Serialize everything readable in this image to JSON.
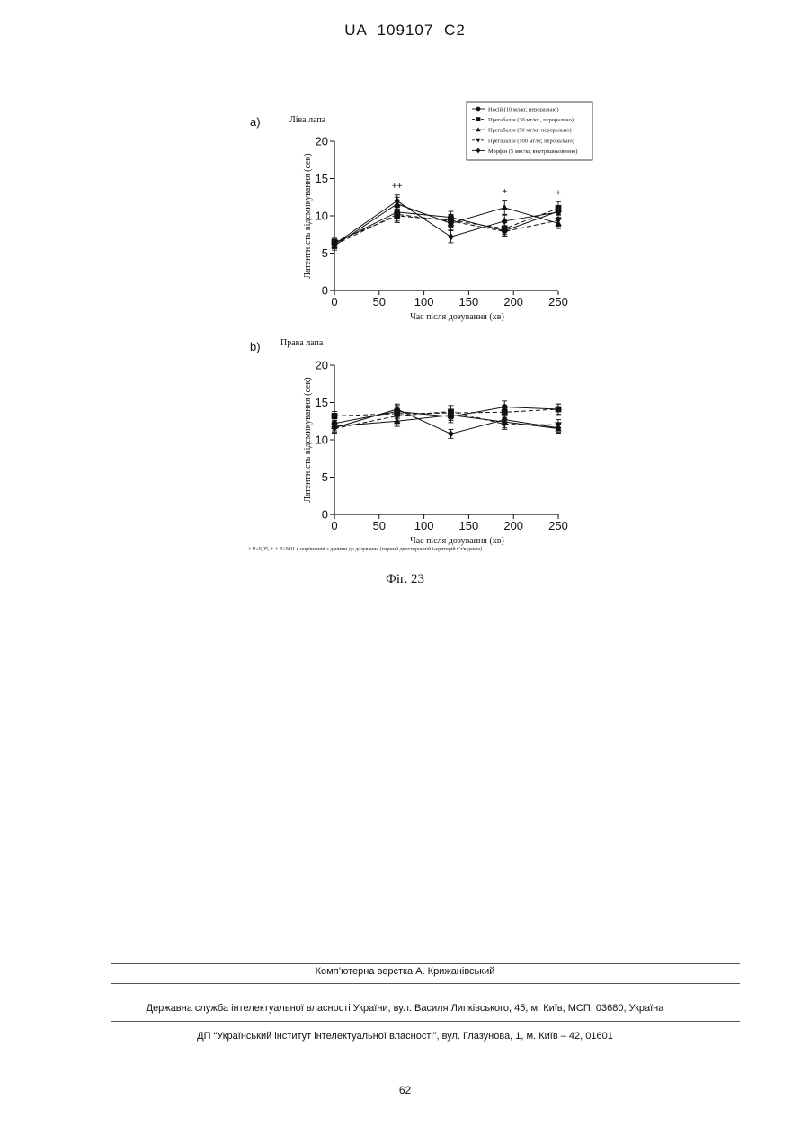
{
  "header": {
    "text": "UA   109107   C2"
  },
  "figure": {
    "caption": "Фіг. 23",
    "footnote": "+ P<0,05, + + P<0,01 в порівнянні з даними до дозування (парний двосторонній t-критерій Ст'юдента)"
  },
  "chart_data": [
    {
      "type": "line",
      "panel_letter": "a)",
      "title": "Ліва лапа",
      "xlabel": "Час після дозування (хв)",
      "ylabel": "Латентність відсмикування (сек)",
      "xlim": [
        0,
        250
      ],
      "ylim": [
        0,
        20
      ],
      "xticks": [
        "0",
        "50",
        "100",
        "150",
        "200",
        "250"
      ],
      "yticks": [
        "0",
        "5",
        "10",
        "15",
        "20"
      ],
      "x": [
        0,
        70,
        130,
        190,
        250
      ],
      "legend_position": "top-right",
      "significance": [
        {
          "x": 70,
          "y": 13.6,
          "label": "++"
        },
        {
          "x": 190,
          "y": 12.9,
          "label": "+"
        },
        {
          "x": 250,
          "y": 12.7,
          "label": "+"
        }
      ],
      "series": [
        {
          "name": "Носій (10 мл/кг, перорально)",
          "marker": "circle",
          "dash": "solid",
          "values": [
            6.3,
            10.5,
            9.8,
            8.0,
            10.6
          ],
          "err": [
            0.5,
            0.9,
            0.8,
            0.7,
            0.8
          ]
        },
        {
          "name": "Прегабалін (30 мг/кг , перорально)",
          "marker": "square",
          "dash": "dash",
          "values": [
            6.5,
            10.0,
            9.4,
            8.3,
            11.0
          ],
          "err": [
            0.5,
            0.9,
            0.8,
            0.8,
            0.9
          ]
        },
        {
          "name": "Прегабалін (50 мг/кг, перорально)",
          "marker": "triangle-up",
          "dash": "solid",
          "values": [
            6.0,
            11.6,
            9.0,
            11.1,
            9.0
          ],
          "err": [
            0.6,
            0.9,
            0.9,
            1.0,
            0.7
          ]
        },
        {
          "name": "Прегабалін (100 мг/кг, перорально)",
          "marker": "triangle-down",
          "dash": "dash",
          "values": [
            6.1,
            10.2,
            9.3,
            7.9,
            9.4
          ],
          "err": [
            0.5,
            0.9,
            0.8,
            0.7,
            0.8
          ]
        },
        {
          "name": "Морфін (5 мкг/кг, внутрішньовенно)",
          "marker": "diamond",
          "dash": "solid",
          "values": [
            6.2,
            12.0,
            7.2,
            9.3,
            10.5
          ],
          "err": [
            0.5,
            0.8,
            0.8,
            0.9,
            0.8
          ]
        }
      ]
    },
    {
      "type": "line",
      "panel_letter": "b)",
      "title": "Права лапа",
      "xlabel": "Час після дозування (хв)",
      "ylabel": "Латентність відсмикування (сек)",
      "xlim": [
        0,
        250
      ],
      "ylim": [
        0,
        20
      ],
      "xticks": [
        "0",
        "50",
        "100",
        "150",
        "200",
        "250"
      ],
      "yticks": [
        "0",
        "5",
        "10",
        "15",
        "20"
      ],
      "x": [
        0,
        70,
        130,
        190,
        250
      ],
      "significance": [],
      "series": [
        {
          "name": "Носій (10 мл/кг, перорально)",
          "marker": "circle",
          "dash": "solid",
          "values": [
            12.2,
            13.8,
            13.1,
            14.4,
            14.1
          ],
          "err": [
            0.6,
            0.8,
            0.8,
            0.8,
            0.7
          ]
        },
        {
          "name": "Прегабалін (30 мг/кг , перорально)",
          "marker": "square",
          "dash": "dash",
          "values": [
            13.2,
            13.5,
            13.6,
            13.7,
            14.1
          ],
          "err": [
            0.6,
            0.7,
            0.8,
            0.7,
            0.7
          ]
        },
        {
          "name": "Прегабалін (50 мг/кг, перорально)",
          "marker": "triangle-up",
          "dash": "solid",
          "values": [
            11.8,
            12.5,
            13.3,
            12.4,
            11.5
          ],
          "err": [
            0.6,
            0.7,
            0.7,
            0.8,
            0.6
          ]
        },
        {
          "name": "Прегабалін (100 мг/кг, перорально)",
          "marker": "triangle-down",
          "dash": "dash",
          "values": [
            11.5,
            13.2,
            13.8,
            12.1,
            12.0
          ],
          "err": [
            0.6,
            0.8,
            0.8,
            0.7,
            0.7
          ]
        },
        {
          "name": "Морфін (5 мкг/кг, внутрішньовенно)",
          "marker": "diamond",
          "dash": "solid",
          "values": [
            11.6,
            14.1,
            10.8,
            12.7,
            11.6
          ],
          "err": [
            0.6,
            0.7,
            0.6,
            0.7,
            0.6
          ]
        }
      ]
    }
  ],
  "footer": {
    "composer": "Комп’ютерна верстка А. Крижанівський",
    "agency": "Державна служба інтелектуальної власності України, вул. Василя Липківського, 45, м. Київ, МСП, 03680, Україна",
    "institute": "ДП “Український інститут інтелектуальної власності”, вул. Глазунова, 1, м. Київ – 42, 01601",
    "page_number": "62"
  }
}
